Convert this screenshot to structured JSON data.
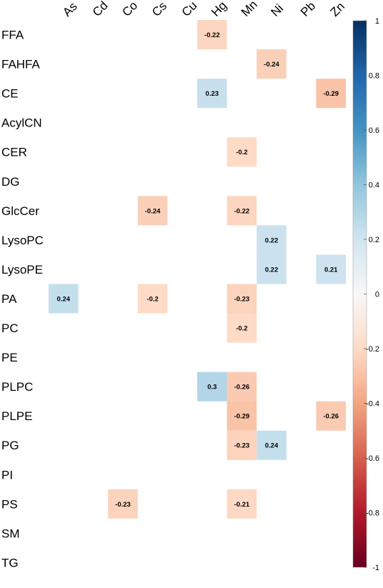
{
  "chart_data": {
    "type": "heatmap",
    "title": "",
    "x_categories": [
      "As",
      "Cd",
      "Co",
      "Cs",
      "Cu",
      "Hg",
      "Mn",
      "Ni",
      "Pb",
      "Zn"
    ],
    "y_categories": [
      "FFA",
      "FAHFA",
      "CE",
      "AcylCN",
      "CER",
      "DG",
      "GlcCer",
      "LysoPC",
      "LysoPE",
      "PA",
      "PC",
      "PE",
      "PLPC",
      "PLPE",
      "PG",
      "PI",
      "PS",
      "SM",
      "TG"
    ],
    "cells": [
      {
        "row": "FFA",
        "col": "Hg",
        "value": -0.22,
        "label": "-0.22"
      },
      {
        "row": "FAHFA",
        "col": "Ni",
        "value": -0.24,
        "label": "-0.24"
      },
      {
        "row": "CE",
        "col": "Hg",
        "value": 0.23,
        "label": "0.23"
      },
      {
        "row": "CE",
        "col": "Zn",
        "value": -0.29,
        "label": "-0.29"
      },
      {
        "row": "CER",
        "col": "Mn",
        "value": -0.2,
        "label": "-0.2"
      },
      {
        "row": "GlcCer",
        "col": "Cs",
        "value": -0.24,
        "label": "-0.24"
      },
      {
        "row": "GlcCer",
        "col": "Mn",
        "value": -0.22,
        "label": "-0.22"
      },
      {
        "row": "LysoPC",
        "col": "Ni",
        "value": 0.22,
        "label": "0.22"
      },
      {
        "row": "LysoPE",
        "col": "Ni",
        "value": 0.22,
        "label": "0.22"
      },
      {
        "row": "LysoPE",
        "col": "Zn",
        "value": 0.21,
        "label": "0.21"
      },
      {
        "row": "PA",
        "col": "As",
        "value": 0.24,
        "label": "0.24"
      },
      {
        "row": "PA",
        "col": "Cs",
        "value": -0.2,
        "label": "-0.2"
      },
      {
        "row": "PA",
        "col": "Mn",
        "value": -0.23,
        "label": "-0.23"
      },
      {
        "row": "PC",
        "col": "Mn",
        "value": -0.2,
        "label": "-0.2"
      },
      {
        "row": "PLPC",
        "col": "Hg",
        "value": 0.3,
        "label": "0.3"
      },
      {
        "row": "PLPC",
        "col": "Mn",
        "value": -0.26,
        "label": "-0.26"
      },
      {
        "row": "PLPE",
        "col": "Mn",
        "value": -0.29,
        "label": "-0.29"
      },
      {
        "row": "PLPE",
        "col": "Zn",
        "value": -0.26,
        "label": "-0.26"
      },
      {
        "row": "PG",
        "col": "Mn",
        "value": -0.23,
        "label": "-0.23"
      },
      {
        "row": "PG",
        "col": "Ni",
        "value": 0.24,
        "label": "0.24"
      },
      {
        "row": "PS",
        "col": "Co",
        "value": -0.23,
        "label": "-0.23"
      },
      {
        "row": "PS",
        "col": "Mn",
        "value": -0.21,
        "label": "-0.21"
      }
    ],
    "colorbar": {
      "range": [
        -1,
        1
      ],
      "ticks": [
        1,
        0.8,
        0.6,
        0.4,
        0.2,
        0,
        -0.2,
        -0.4,
        -0.6,
        -0.8,
        -1
      ],
      "tick_labels": [
        "1",
        "0.8",
        "0.6",
        "0.4",
        "0.2",
        "0",
        "-0.2",
        "-0.4",
        "-0.6",
        "-0.8",
        "-1"
      ],
      "colors": {
        "negative": "#67001F",
        "neutral": "#F7F7F7",
        "positive": "#053061"
      },
      "placement": "right"
    },
    "grid": false
  }
}
